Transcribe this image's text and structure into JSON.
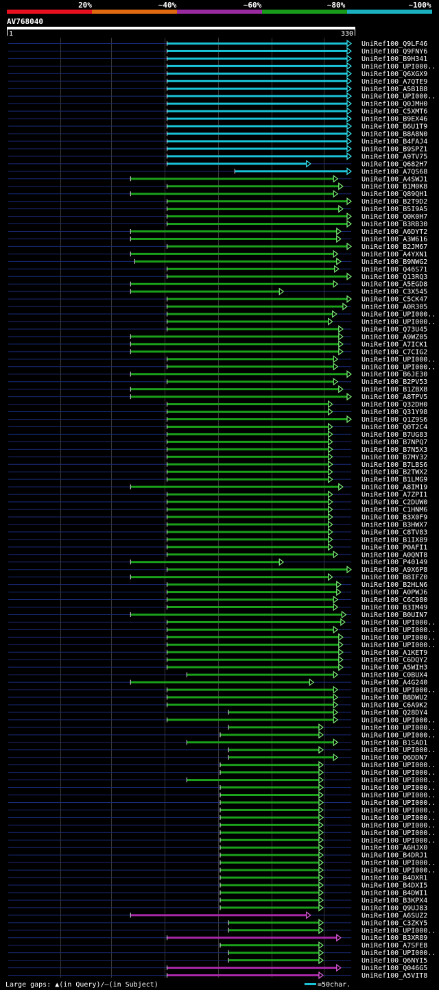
{
  "query": {
    "name": "AV768040",
    "start": "1",
    "end": "330",
    "length": 330
  },
  "scale": {
    "labels": [
      "20%",
      "~40%",
      "~60%",
      "~80%",
      "~100%"
    ],
    "colors": [
      "#e8101e",
      "#e06a10",
      "#9a2aa0",
      "#1a9a1a",
      "#1ab0c0"
    ]
  },
  "legend": {
    "gaps_text": "Large gaps: ",
    "gaps_query": "(in Query)/",
    "gaps_subject": "(in Subject)",
    "bar_text": "=50char."
  },
  "colors": {
    "c100": "#19c2d6",
    "c80": "#1aa01a",
    "c60": "#a828a8",
    "arrow100": "#39e6f0",
    "arrow80": "#7ef07a",
    "arrow60": "#e060e0",
    "bg": "#000000",
    "query_line": "#1a2a7a"
  },
  "chart_data": {
    "type": "alignment",
    "query_length": 330,
    "hits": [
      {
        "id": "UniRef100_Q9LF46",
        "start": 153,
        "end": 330,
        "c": "c100"
      },
      {
        "id": "UniRef100_Q9FNY6",
        "start": 153,
        "end": 330,
        "c": "c100"
      },
      {
        "id": "UniRef100_B9H341",
        "start": 153,
        "end": 330,
        "c": "c100"
      },
      {
        "id": "UniRef100_UPI000..",
        "start": 153,
        "end": 330,
        "c": "c100"
      },
      {
        "id": "UniRef100_Q6XGX9",
        "start": 153,
        "end": 330,
        "c": "c100"
      },
      {
        "id": "UniRef100_A7QTE9",
        "start": 153,
        "end": 330,
        "c": "c100"
      },
      {
        "id": "UniRef100_A5B1B8",
        "start": 153,
        "end": 330,
        "c": "c100"
      },
      {
        "id": "UniRef100_UPI000..",
        "start": 153,
        "end": 330,
        "c": "c100"
      },
      {
        "id": "UniRef100_Q0JMH0",
        "start": 153,
        "end": 330,
        "c": "c100"
      },
      {
        "id": "UniRef100_C5XMT6",
        "start": 153,
        "end": 330,
        "c": "c100"
      },
      {
        "id": "UniRef100_B9EX46",
        "start": 153,
        "end": 330,
        "c": "c100"
      },
      {
        "id": "UniRef100_B6U1T9",
        "start": 153,
        "end": 330,
        "c": "c100"
      },
      {
        "id": "UniRef100_B8A8N0",
        "start": 153,
        "end": 330,
        "c": "c100"
      },
      {
        "id": "UniRef100_B4FAJ4",
        "start": 153,
        "end": 330,
        "c": "c100"
      },
      {
        "id": "UniRef100_B9SPZ1",
        "start": 153,
        "end": 330,
        "c": "c100"
      },
      {
        "id": "UniRef100_A9TV75",
        "start": 153,
        "end": 330,
        "c": "c100"
      },
      {
        "id": "UniRef100_Q682H7",
        "start": 153,
        "end": 291,
        "c": "c100"
      },
      {
        "id": "UniRef100_A7QS68",
        "start": 218,
        "end": 330,
        "c": "c100"
      },
      {
        "id": "UniRef100_A4SWJ1",
        "start": 118,
        "end": 317,
        "c": "c80"
      },
      {
        "id": "UniRef100_B1M0K8",
        "start": 153,
        "end": 322,
        "c": "c80"
      },
      {
        "id": "UniRef100_Q89QH1",
        "start": 118,
        "end": 317,
        "c": "c80"
      },
      {
        "id": "UniRef100_B2T9D2",
        "start": 153,
        "end": 330,
        "c": "c80"
      },
      {
        "id": "UniRef100_B5I9A5",
        "start": 153,
        "end": 322,
        "c": "c80"
      },
      {
        "id": "UniRef100_Q0K0H7",
        "start": 153,
        "end": 330,
        "c": "c80"
      },
      {
        "id": "UniRef100_B3RB30",
        "start": 153,
        "end": 330,
        "c": "c80"
      },
      {
        "id": "UniRef100_A6DYT2",
        "start": 118,
        "end": 320,
        "c": "c80"
      },
      {
        "id": "UniRef100_A3W616",
        "start": 118,
        "end": 320,
        "c": "c80"
      },
      {
        "id": "UniRef100_B2JM67",
        "start": 153,
        "end": 330,
        "c": "c80"
      },
      {
        "id": "UniRef100_A4YXN1",
        "start": 118,
        "end": 317,
        "c": "c80"
      },
      {
        "id": "UniRef100_B9NWG2",
        "start": 122,
        "end": 320,
        "c": "c80"
      },
      {
        "id": "UniRef100_Q46S71",
        "start": 153,
        "end": 318,
        "c": "c80"
      },
      {
        "id": "UniRef100_Q13RQ3",
        "start": 153,
        "end": 330,
        "c": "c80"
      },
      {
        "id": "UniRef100_A5EGD8",
        "start": 118,
        "end": 317,
        "c": "c80"
      },
      {
        "id": "UniRef100_C3X545",
        "start": 118,
        "end": 265,
        "c": "c80"
      },
      {
        "id": "UniRef100_C5CK47",
        "start": 153,
        "end": 330,
        "c": "c80"
      },
      {
        "id": "UniRef100_A0R305",
        "start": 153,
        "end": 326,
        "c": "c80"
      },
      {
        "id": "UniRef100_UPI000..",
        "start": 153,
        "end": 316,
        "c": "c80"
      },
      {
        "id": "UniRef100_UPI000..",
        "start": 153,
        "end": 312,
        "c": "c80"
      },
      {
        "id": "UniRef100_Q73U45",
        "start": 153,
        "end": 322,
        "c": "c80"
      },
      {
        "id": "UniRef100_A9WZ05",
        "start": 118,
        "end": 322,
        "c": "c80"
      },
      {
        "id": "UniRef100_A7ICK1",
        "start": 118,
        "end": 322,
        "c": "c80"
      },
      {
        "id": "UniRef100_C7CIG2",
        "start": 118,
        "end": 322,
        "c": "c80"
      },
      {
        "id": "UniRef100_UPI000..",
        "start": 153,
        "end": 317,
        "c": "c80"
      },
      {
        "id": "UniRef100_UPI000..",
        "start": 153,
        "end": 317,
        "c": "c80"
      },
      {
        "id": "UniRef100_B6JE30",
        "start": 118,
        "end": 330,
        "c": "c80"
      },
      {
        "id": "UniRef100_B2PV53",
        "start": 153,
        "end": 317,
        "c": "c80"
      },
      {
        "id": "UniRef100_B1ZBX8",
        "start": 118,
        "end": 322,
        "c": "c80"
      },
      {
        "id": "UniRef100_A8TPV5",
        "start": 118,
        "end": 330,
        "c": "c80"
      },
      {
        "id": "UniRef100_Q32DH0",
        "start": 153,
        "end": 312,
        "c": "c80"
      },
      {
        "id": "UniRef100_Q31Y98",
        "start": 153,
        "end": 312,
        "c": "c80"
      },
      {
        "id": "UniRef100_Q1Z9S6",
        "start": 153,
        "end": 330,
        "c": "c80"
      },
      {
        "id": "UniRef100_Q0T2C4",
        "start": 153,
        "end": 312,
        "c": "c80"
      },
      {
        "id": "UniRef100_B7UG83",
        "start": 153,
        "end": 312,
        "c": "c80"
      },
      {
        "id": "UniRef100_B7NPQ7",
        "start": 153,
        "end": 312,
        "c": "c80"
      },
      {
        "id": "UniRef100_B7N5X3",
        "start": 153,
        "end": 312,
        "c": "c80"
      },
      {
        "id": "UniRef100_B7MY32",
        "start": 153,
        "end": 312,
        "c": "c80"
      },
      {
        "id": "UniRef100_B7LBS6",
        "start": 153,
        "end": 312,
        "c": "c80"
      },
      {
        "id": "UniRef100_B2TWX2",
        "start": 153,
        "end": 312,
        "c": "c80"
      },
      {
        "id": "UniRef100_B1LMG9",
        "start": 153,
        "end": 312,
        "c": "c80"
      },
      {
        "id": "UniRef100_A8IM19",
        "start": 118,
        "end": 322,
        "c": "c80"
      },
      {
        "id": "UniRef100_A7ZPI1",
        "start": 153,
        "end": 312,
        "c": "c80"
      },
      {
        "id": "UniRef100_C2DUW0",
        "start": 153,
        "end": 312,
        "c": "c80"
      },
      {
        "id": "UniRef100_C1HNM6",
        "start": 153,
        "end": 312,
        "c": "c80"
      },
      {
        "id": "UniRef100_B3X0F9",
        "start": 153,
        "end": 312,
        "c": "c80"
      },
      {
        "id": "UniRef100_B3HWX7",
        "start": 153,
        "end": 312,
        "c": "c80"
      },
      {
        "id": "UniRef100_C8TV83",
        "start": 153,
        "end": 312,
        "c": "c80"
      },
      {
        "id": "UniRef100_B1IX89",
        "start": 153,
        "end": 312,
        "c": "c80"
      },
      {
        "id": "UniRef100_P0AFI1",
        "start": 153,
        "end": 312,
        "c": "c80"
      },
      {
        "id": "UniRef100_A0QNT8",
        "start": 153,
        "end": 317,
        "c": "c80"
      },
      {
        "id": "UniRef100_P40149",
        "start": 118,
        "end": 265,
        "c": "c80"
      },
      {
        "id": "UniRef100_A9X6P8",
        "start": 153,
        "end": 330,
        "c": "c80"
      },
      {
        "id": "UniRef100_B8IFZ0",
        "start": 118,
        "end": 312,
        "c": "c80"
      },
      {
        "id": "UniRef100_B2HLN6",
        "start": 153,
        "end": 320,
        "c": "c80"
      },
      {
        "id": "UniRef100_A0PWJ6",
        "start": 153,
        "end": 320,
        "c": "c80"
      },
      {
        "id": "UniRef100_C6C980",
        "start": 153,
        "end": 317,
        "c": "c80"
      },
      {
        "id": "UniRef100_B3IM49",
        "start": 153,
        "end": 317,
        "c": "c80"
      },
      {
        "id": "UniRef100_B0UIN7",
        "start": 118,
        "end": 325,
        "c": "c80"
      },
      {
        "id": "UniRef100_UPI000..",
        "start": 153,
        "end": 324,
        "c": "c80"
      },
      {
        "id": "UniRef100_UPI000..",
        "start": 153,
        "end": 317,
        "c": "c80"
      },
      {
        "id": "UniRef100_UPI000..",
        "start": 153,
        "end": 322,
        "c": "c80"
      },
      {
        "id": "UniRef100_UPI000..",
        "start": 153,
        "end": 322,
        "c": "c80"
      },
      {
        "id": "UniRef100_A1KET9",
        "start": 153,
        "end": 322,
        "c": "c80"
      },
      {
        "id": "UniRef100_C6DQY2",
        "start": 153,
        "end": 322,
        "c": "c80"
      },
      {
        "id": "UniRef100_A5WIH3",
        "start": 153,
        "end": 322,
        "c": "c80"
      },
      {
        "id": "UniRef100_C0BUX4",
        "start": 172,
        "end": 317,
        "c": "c80"
      },
      {
        "id": "UniRef100_A4G240",
        "start": 118,
        "end": 294,
        "c": "c80"
      },
      {
        "id": "UniRef100_UPI000..",
        "start": 153,
        "end": 317,
        "c": "c80"
      },
      {
        "id": "UniRef100_B8DWU2",
        "start": 153,
        "end": 317,
        "c": "c80"
      },
      {
        "id": "UniRef100_C6A9K2",
        "start": 153,
        "end": 317,
        "c": "c80"
      },
      {
        "id": "UniRef100_Q28DY4",
        "start": 212,
        "end": 317,
        "c": "c80"
      },
      {
        "id": "UniRef100_UPI000..",
        "start": 153,
        "end": 317,
        "c": "c80"
      },
      {
        "id": "UniRef100_UPI000..",
        "start": 212,
        "end": 303,
        "c": "c80"
      },
      {
        "id": "UniRef100_UPI000..",
        "start": 204,
        "end": 303,
        "c": "c80"
      },
      {
        "id": "UniRef100_B1SAD1",
        "start": 172,
        "end": 317,
        "c": "c80"
      },
      {
        "id": "UniRef100_UPI000..",
        "start": 212,
        "end": 303,
        "c": "c80"
      },
      {
        "id": "UniRef100_Q6DDN7",
        "start": 212,
        "end": 317,
        "c": "c80"
      },
      {
        "id": "UniRef100_UPI000..",
        "start": 204,
        "end": 303,
        "c": "c80"
      },
      {
        "id": "UniRef100_UPI000..",
        "start": 204,
        "end": 303,
        "c": "c80"
      },
      {
        "id": "UniRef100_UPI000..",
        "start": 172,
        "end": 303,
        "c": "c80"
      },
      {
        "id": "UniRef100_UPI000..",
        "start": 204,
        "end": 303,
        "c": "c80"
      },
      {
        "id": "UniRef100_UPI000..",
        "start": 204,
        "end": 303,
        "c": "c80"
      },
      {
        "id": "UniRef100_UPI000..",
        "start": 204,
        "end": 303,
        "c": "c80"
      },
      {
        "id": "UniRef100_UPI000..",
        "start": 204,
        "end": 303,
        "c": "c80"
      },
      {
        "id": "UniRef100_UPI000..",
        "start": 204,
        "end": 303,
        "c": "c80"
      },
      {
        "id": "UniRef100_UPI000..",
        "start": 204,
        "end": 303,
        "c": "c80"
      },
      {
        "id": "UniRef100_UPI000..",
        "start": 204,
        "end": 303,
        "c": "c80"
      },
      {
        "id": "UniRef100_UPI000..",
        "start": 204,
        "end": 303,
        "c": "c80"
      },
      {
        "id": "UniRef100_A6HJX0",
        "start": 204,
        "end": 303,
        "c": "c80"
      },
      {
        "id": "UniRef100_B4DRJ1",
        "start": 204,
        "end": 303,
        "c": "c80"
      },
      {
        "id": "UniRef100_UPI000..",
        "start": 204,
        "end": 303,
        "c": "c80"
      },
      {
        "id": "UniRef100_UPI000..",
        "start": 204,
        "end": 303,
        "c": "c80"
      },
      {
        "id": "UniRef100_B4DXR1",
        "start": 204,
        "end": 303,
        "c": "c80"
      },
      {
        "id": "UniRef100_B4DXI5",
        "start": 204,
        "end": 303,
        "c": "c80"
      },
      {
        "id": "UniRef100_B4DWI1",
        "start": 204,
        "end": 303,
        "c": "c80"
      },
      {
        "id": "UniRef100_B3KPX4",
        "start": 204,
        "end": 303,
        "c": "c80"
      },
      {
        "id": "UniRef100_Q9UJ83",
        "start": 204,
        "end": 303,
        "c": "c80"
      },
      {
        "id": "UniRef100_A6SUZ2",
        "start": 118,
        "end": 291,
        "c": "c60"
      },
      {
        "id": "UniRef100_C3ZKY5",
        "start": 212,
        "end": 303,
        "c": "c80"
      },
      {
        "id": "UniRef100_UPI000..",
        "start": 212,
        "end": 303,
        "c": "c80"
      },
      {
        "id": "UniRef100_B3XR89",
        "start": 153,
        "end": 320,
        "c": "c60"
      },
      {
        "id": "UniRef100_A7SFE8",
        "start": 204,
        "end": 303,
        "c": "c80"
      },
      {
        "id": "UniRef100_UPI000..",
        "start": 212,
        "end": 303,
        "c": "c80"
      },
      {
        "id": "UniRef100_Q6NYI5",
        "start": 212,
        "end": 303,
        "c": "c80"
      },
      {
        "id": "UniRef100_Q046G5",
        "start": 153,
        "end": 320,
        "c": "c60"
      },
      {
        "id": "UniRef100_A5VIT8",
        "start": 153,
        "end": 303,
        "c": "c60"
      }
    ]
  }
}
